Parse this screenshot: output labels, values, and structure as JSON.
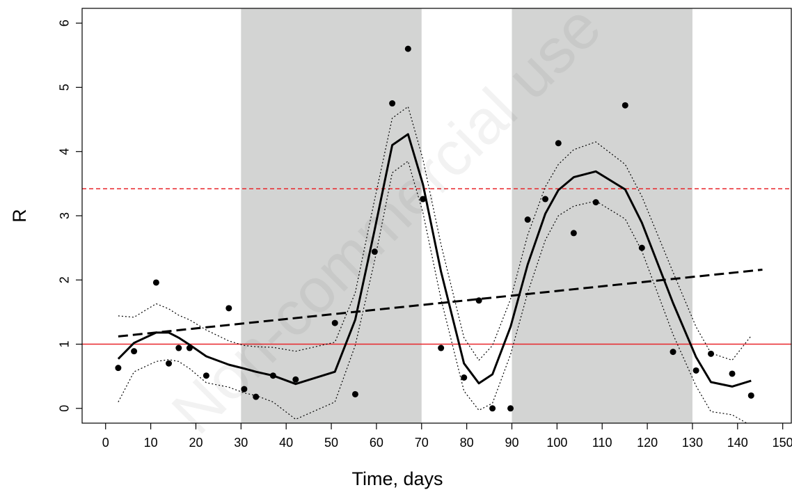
{
  "chart_data": {
    "type": "scatter",
    "xlabel": "Time, days",
    "ylabel": "R",
    "watermark": "Non-commercial use",
    "xlim": [
      -5.2,
      151.9
    ],
    "ylim": [
      -0.23,
      6.23
    ],
    "xticks": [
      0,
      10,
      20,
      30,
      40,
      50,
      60,
      70,
      80,
      90,
      100,
      110,
      120,
      130,
      140,
      150
    ],
    "yticks": [
      0,
      1,
      2,
      3,
      4,
      5,
      6
    ],
    "shaded_ranges": [
      [
        30,
        70
      ],
      [
        90,
        130
      ]
    ],
    "shade_color": "#d3d4d3",
    "hlines": [
      {
        "value": 1,
        "color": "#e8262b",
        "style": "solid"
      },
      {
        "value": 3.42,
        "color": "#e8262b",
        "style": "dashed"
      }
    ],
    "x": [
      2.8,
      6.3,
      11.2,
      14.0,
      16.2,
      18.6,
      22.3,
      27.3,
      30.7,
      33.3,
      37.1,
      42.1,
      50.8,
      55.3,
      59.6,
      63.5,
      67.0,
      70.3,
      74.3,
      79.4,
      82.7,
      85.7,
      89.7,
      93.5,
      97.4,
      100.3,
      103.7,
      108.6,
      115.1,
      118.8,
      125.7,
      130.8,
      134.1,
      138.8,
      143.0
    ],
    "series": [
      {
        "mark": "points",
        "color": "#000000",
        "values": [
          0.63,
          0.89,
          1.96,
          0.7,
          0.94,
          0.94,
          0.51,
          1.56,
          0.3,
          0.18,
          0.51,
          0.45,
          1.33,
          0.22,
          2.44,
          4.75,
          5.6,
          3.26,
          0.94,
          0.48,
          1.68,
          0.0,
          0.0,
          2.94,
          3.26,
          4.13,
          2.73,
          3.21,
          4.72,
          2.5,
          0.88,
          0.59,
          0.85,
          0.54,
          0.2
        ]
      },
      {
        "mark": "line",
        "style": "solid",
        "color": "#000000",
        "values": [
          0.77,
          1.02,
          1.18,
          1.18,
          1.1,
          0.99,
          0.81,
          0.68,
          0.62,
          0.57,
          0.51,
          0.38,
          0.57,
          1.38,
          2.78,
          4.1,
          4.27,
          3.49,
          2.13,
          0.7,
          0.39,
          0.53,
          1.27,
          2.24,
          3.03,
          3.4,
          3.6,
          3.69,
          3.41,
          2.89,
          1.64,
          0.8,
          0.41,
          0.34,
          0.43
        ]
      },
      {
        "mark": "line",
        "style": "dotted",
        "color": "#000000",
        "values": [
          1.44,
          1.42,
          1.63,
          1.55,
          1.45,
          1.38,
          1.22,
          1.05,
          0.98,
          0.96,
          0.95,
          0.89,
          1.03,
          1.8,
          3.25,
          4.52,
          4.7,
          3.88,
          2.55,
          1.1,
          0.75,
          0.98,
          1.7,
          2.7,
          3.45,
          3.8,
          4.03,
          4.15,
          3.8,
          3.3,
          2.12,
          1.27,
          0.86,
          0.75,
          1.13
        ]
      },
      {
        "mark": "line",
        "style": "dotted",
        "color": "#000000",
        "values": [
          0.1,
          0.57,
          0.73,
          0.76,
          0.73,
          0.62,
          0.4,
          0.33,
          0.24,
          0.2,
          0.1,
          -0.17,
          0.1,
          0.98,
          2.3,
          3.67,
          3.85,
          3.05,
          1.7,
          0.27,
          -0.03,
          0.08,
          0.84,
          1.8,
          2.62,
          3.0,
          3.15,
          3.23,
          2.95,
          2.45,
          1.15,
          0.35,
          -0.05,
          -0.1,
          -0.27
        ]
      },
      {
        "mark": "line",
        "style": "dashed",
        "color": "#000000",
        "x": [
          2.8,
          145.5
        ],
        "values": [
          1.12,
          2.16
        ]
      }
    ]
  }
}
